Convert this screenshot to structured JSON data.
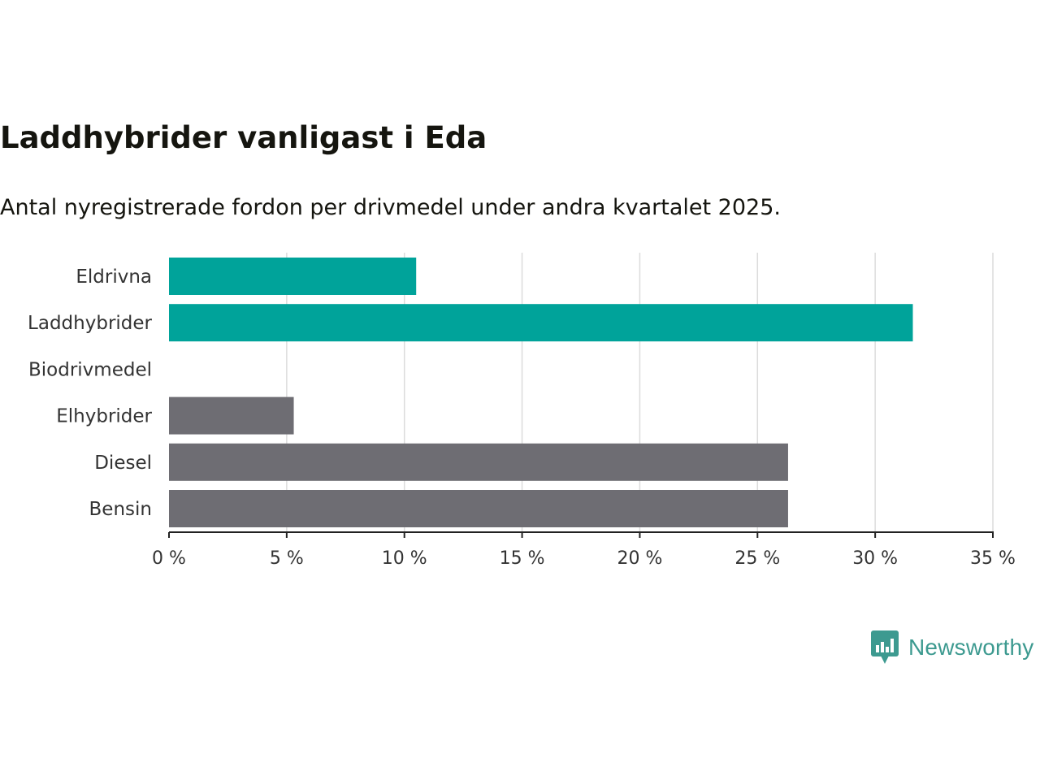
{
  "chart_data": {
    "type": "bar",
    "orientation": "horizontal",
    "title": "Laddhybrider vanligast i Eda",
    "subtitle": "Antal nyregistrerade fordon per drivmedel under andra kvartalet 2025.",
    "categories": [
      "Eldrivna",
      "Laddhybrider",
      "Biodrivmedel",
      "Elhybrider",
      "Diesel",
      "Bensin"
    ],
    "values": [
      10.5,
      31.6,
      0,
      5.3,
      26.3,
      26.3
    ],
    "bar_colors": [
      "#00a39a",
      "#00a39a",
      "#00a39a",
      "#6e6d73",
      "#6e6d73",
      "#6e6d73"
    ],
    "xlim": [
      0,
      35
    ],
    "x_ticks": [
      0,
      5,
      10,
      15,
      20,
      25,
      30,
      35
    ],
    "x_tick_labels": [
      "0 %",
      "5 %",
      "10 %",
      "15 %",
      "20 %",
      "25 %",
      "30 %",
      "35 %"
    ],
    "grid": "vertical"
  },
  "brand": {
    "name": "Newsworthy",
    "color": "#3d9a90",
    "icon": "bar-chart-speech-bubble-icon"
  }
}
